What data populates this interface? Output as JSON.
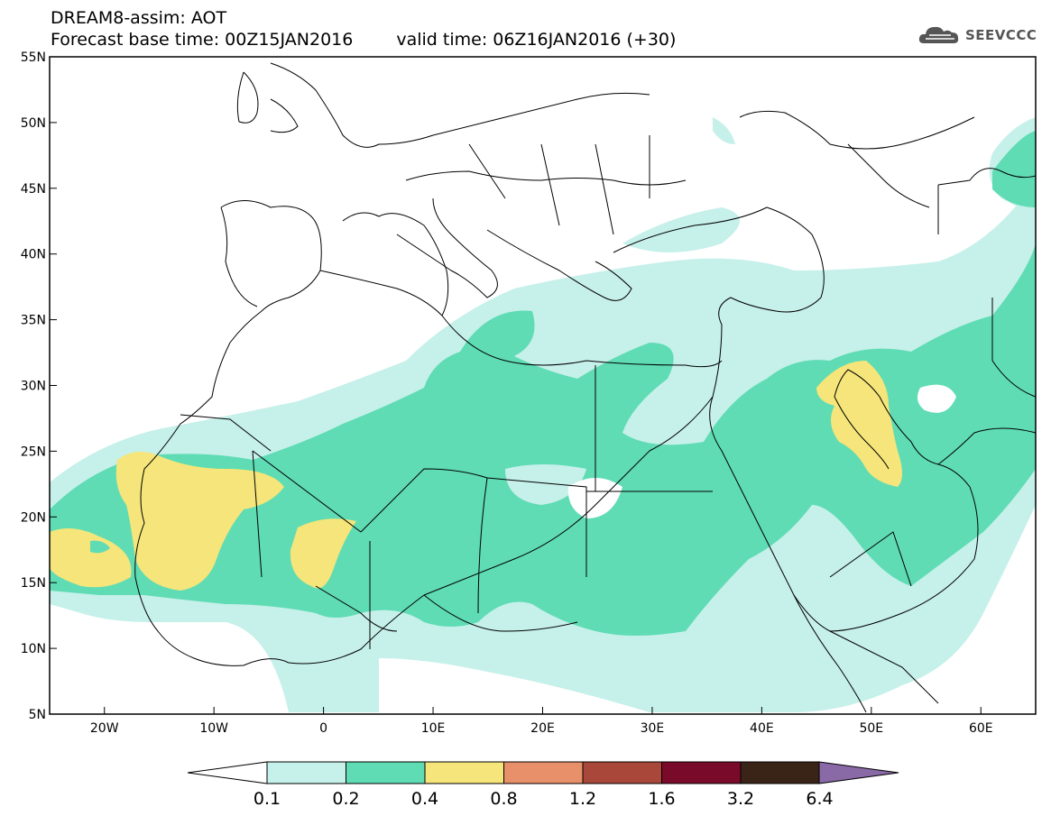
{
  "header": {
    "line1": "DREAM8-assim: AOT",
    "base_time": "Forecast base time: 00Z15JAN2016",
    "valid_time": "valid time: 06Z16JAN2016 (+30)"
  },
  "logo": {
    "name": "cloud-logo-icon",
    "text": "SEEVCCC"
  },
  "map": {
    "lat_ticks": [
      "55N",
      "50N",
      "45N",
      "40N",
      "35N",
      "30N",
      "25N",
      "20N",
      "15N",
      "10N",
      "5N"
    ],
    "lon_ticks": [
      "20W",
      "10W",
      "0",
      "10E",
      "20E",
      "30E",
      "40E",
      "50E",
      "60E"
    ],
    "lon_range": [
      -25,
      65
    ],
    "lat_range": [
      5,
      55
    ]
  },
  "legend": {
    "labels": [
      "0.1",
      "0.2",
      "0.4",
      "0.8",
      "1.2",
      "1.6",
      "3.2",
      "6.4"
    ],
    "colors": [
      "#ffffff",
      "#c6f0ea",
      "#5fdcb4",
      "#f5e57a",
      "#e8906a",
      "#a8473a",
      "#7a0a2a",
      "#3a2418",
      "#8a6aa6"
    ]
  }
}
